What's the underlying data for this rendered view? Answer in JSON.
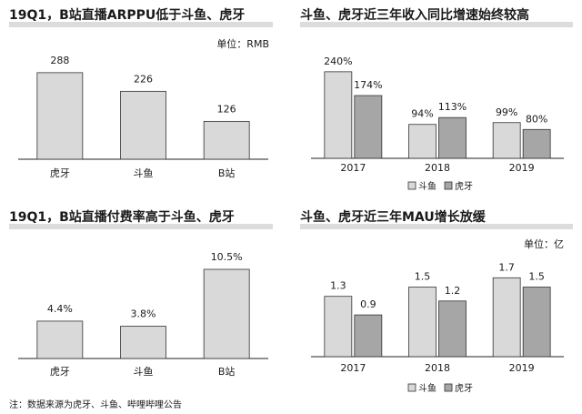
{
  "colors": {
    "bar_light": "#d9d9d9",
    "bar_dark": "#a6a6a6",
    "bar_stroke": "#333333",
    "title_underline": "#dcdcdc"
  },
  "footnote": "注：数据来源为虎牙、斗鱼、哔哩哔哩公告",
  "chart_data": [
    {
      "type": "bar",
      "title": "19Q1，B站直播ARPPU低于斗鱼、虎牙",
      "unit": "单位：RMB",
      "categories": [
        "虎牙",
        "斗鱼",
        "B站"
      ],
      "values": [
        288,
        226,
        126
      ],
      "value_labels": [
        "288",
        "226",
        "126"
      ],
      "ylim": [
        0,
        330
      ],
      "grid": false
    },
    {
      "type": "bar",
      "title": "斗鱼、虎牙近三年收入同比增速始终较高",
      "categories": [
        "2017",
        "2018",
        "2019"
      ],
      "series": [
        {
          "name": "斗鱼",
          "values": [
            240,
            94,
            99
          ],
          "labels": [
            "240%",
            "94%",
            "99%"
          ]
        },
        {
          "name": "虎牙",
          "values": [
            174,
            113,
            80
          ],
          "labels": [
            "174%",
            "113%",
            "80%"
          ]
        }
      ],
      "ylim": [
        0,
        280
      ],
      "legend": "bottom",
      "grid": false
    },
    {
      "type": "bar",
      "title": "19Q1，B站直播付费率高于斗鱼、虎牙",
      "categories": [
        "虎牙",
        "斗鱼",
        "B站"
      ],
      "values": [
        4.4,
        3.8,
        10.5
      ],
      "value_labels": [
        "4.4%",
        "3.8%",
        "10.5%"
      ],
      "ylim": [
        0,
        12
      ],
      "grid": false
    },
    {
      "type": "bar",
      "title": "斗鱼、虎牙近三年MAU增长放缓",
      "unit": "单位：亿",
      "categories": [
        "2017",
        "2018",
        "2019"
      ],
      "series": [
        {
          "name": "斗鱼",
          "values": [
            1.3,
            1.5,
            1.7
          ],
          "labels": [
            "1.3",
            "1.5",
            "1.7"
          ]
        },
        {
          "name": "虎牙",
          "values": [
            0.9,
            1.2,
            1.5
          ],
          "labels": [
            "0.9",
            "1.2",
            "1.5"
          ]
        }
      ],
      "ylim": [
        0,
        2.0
      ],
      "legend": "bottom",
      "grid": false
    }
  ]
}
